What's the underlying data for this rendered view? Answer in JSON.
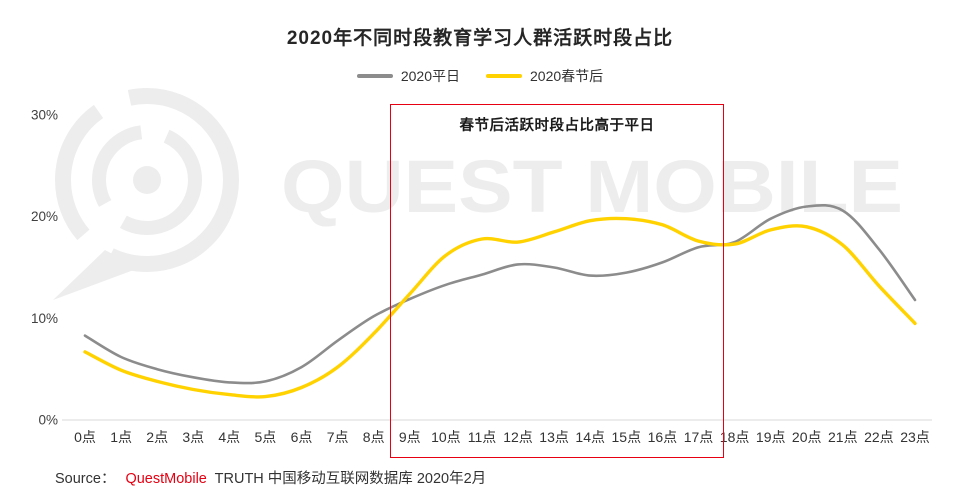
{
  "title": "2020年不同时段教育学习人群活跃时段占比",
  "watermark": {
    "text": "QUEST MOBILE"
  },
  "source": {
    "prefix": "Source：",
    "brand": "QuestMobile",
    "brand_color": "#e60012",
    "suffix": "TRUTH 中国移动互联网数据库 2020年2月"
  },
  "chart_data": {
    "type": "line",
    "title": "2020年不同时段教育学习人群活跃时段占比",
    "categories": [
      "0点",
      "1点",
      "2点",
      "3点",
      "4点",
      "5点",
      "6点",
      "7点",
      "8点",
      "9点",
      "10点",
      "11点",
      "12点",
      "13点",
      "14点",
      "15点",
      "16点",
      "17点",
      "18点",
      "19点",
      "20点",
      "21点",
      "22点",
      "23点"
    ],
    "series": [
      {
        "name": "2020平日",
        "color": "#8c8c8c",
        "values": [
          8.3,
          6.2,
          5.0,
          4.2,
          3.7,
          3.8,
          5.2,
          7.8,
          10.2,
          11.9,
          13.3,
          14.3,
          15.3,
          15.0,
          14.2,
          14.5,
          15.5,
          17.0,
          17.5,
          19.8,
          21.0,
          20.6,
          16.8,
          11.8
        ]
      },
      {
        "name": "2020春节后",
        "color": "#ffd200",
        "values": [
          6.7,
          4.9,
          3.8,
          3.0,
          2.5,
          2.3,
          3.2,
          5.2,
          8.5,
          12.4,
          16.2,
          17.8,
          17.5,
          18.5,
          19.6,
          19.8,
          19.2,
          17.6,
          17.3,
          18.7,
          19.0,
          17.2,
          13.2,
          9.5
        ]
      }
    ],
    "ylim": [
      0,
      30
    ],
    "yticks": [
      {
        "value": 0,
        "label": "0%"
      },
      {
        "value": 10,
        "label": "10%"
      },
      {
        "value": 20,
        "label": "20%"
      },
      {
        "value": 30,
        "label": "30%"
      }
    ],
    "xlabel": "",
    "ylabel": "",
    "grid": false,
    "legend_position": "top",
    "highlight_region": {
      "from_category": "9点",
      "to_category": "17点",
      "label": "春节后活跃时段占比高于平日",
      "border_color": "#e60012"
    }
  }
}
